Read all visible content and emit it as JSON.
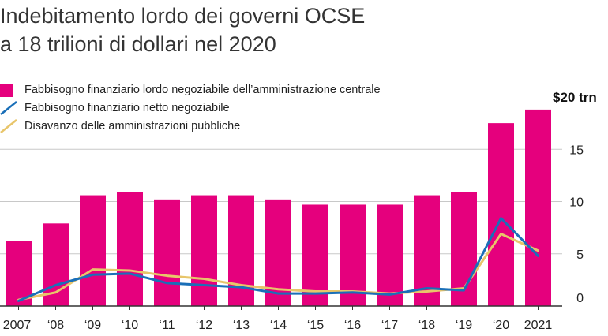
{
  "title_line1": "Indebitamento lordo dei governi OCSE",
  "title_line2": "a 18 trilioni di dollari nel 2020",
  "colors": {
    "bars": "#e5007d",
    "net": "#1a6fb8",
    "deficit": "#e8c56a",
    "grid": "#c8c8c8",
    "axis": "#333333"
  },
  "legend": [
    {
      "key": "gross",
      "label": "Fabbisogno finanziario lordo negoziabile dell’amministrazione centrale",
      "icon": "box"
    },
    {
      "key": "net",
      "label": "Fabbisogno finanziario netto negoziabile",
      "icon": "line"
    },
    {
      "key": "deficit",
      "label": "Disavanzo delle amministrazioni pubbliche",
      "icon": "line"
    }
  ],
  "chart_data": {
    "type": "bar",
    "categories": [
      "2007",
      "‘08",
      "‘09",
      "‘10",
      "‘11",
      "‘12",
      "‘13",
      "‘14",
      "‘15",
      "‘16",
      "‘17",
      "‘18",
      "‘19",
      "‘20",
      "2021"
    ],
    "series": [
      {
        "name": "Fabbisogno finanziario lordo negoziabile dell’amministrazione centrale",
        "type": "bar",
        "values": [
          6.2,
          7.9,
          10.6,
          10.9,
          10.2,
          10.6,
          10.6,
          10.2,
          9.7,
          9.7,
          9.7,
          10.6,
          10.9,
          17.5,
          18.8
        ]
      },
      {
        "name": "Fabbisogno finanziario netto negoziabile",
        "type": "line",
        "values": [
          0.5,
          2.0,
          3.0,
          3.1,
          2.2,
          2.0,
          1.8,
          1.2,
          1.2,
          1.3,
          1.1,
          1.7,
          1.5,
          8.4,
          4.8
        ]
      },
      {
        "name": "Disavanzo delle amministrazioni pubbliche",
        "type": "line",
        "values": [
          0.6,
          1.3,
          3.5,
          3.4,
          2.9,
          2.6,
          2.0,
          1.6,
          1.4,
          1.4,
          1.2,
          1.4,
          1.7,
          6.9,
          5.3
        ]
      }
    ],
    "yticks": [
      0,
      5,
      10,
      15
    ],
    "ylim": [
      0,
      20
    ],
    "ytop_label": "$20 trn",
    "grid": true
  }
}
